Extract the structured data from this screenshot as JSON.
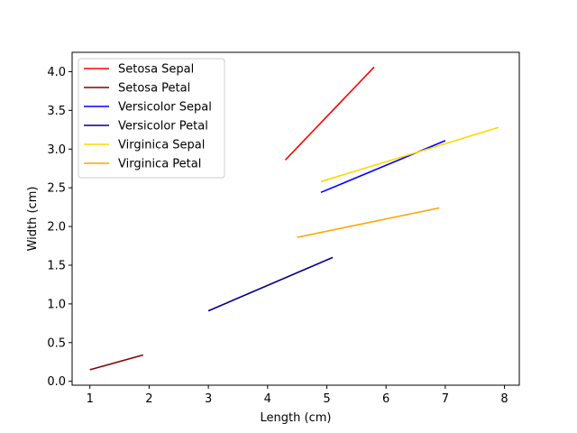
{
  "chart_data": {
    "type": "line",
    "title": "",
    "xlabel": "Length (cm)",
    "ylabel": "Width (cm)",
    "xlim": [
      0.7,
      8.25
    ],
    "ylim": [
      -0.05,
      4.25
    ],
    "xticks": [
      1,
      2,
      3,
      4,
      5,
      6,
      7,
      8
    ],
    "yticks": [
      0.0,
      0.5,
      1.0,
      1.5,
      2.0,
      2.5,
      3.0,
      3.5,
      4.0
    ],
    "grid": false,
    "legend_position": "top-left",
    "series": [
      {
        "name": "Setosa Sepal",
        "color": "#ff0000",
        "x": [
          4.3,
          5.8
        ],
        "y": [
          2.86,
          4.06
        ]
      },
      {
        "name": "Setosa Petal",
        "color": "#8b0000",
        "x": [
          1.0,
          1.9
        ],
        "y": [
          0.15,
          0.34
        ]
      },
      {
        "name": "Versicolor Sepal",
        "color": "#0000ff",
        "x": [
          4.9,
          7.0
        ],
        "y": [
          2.44,
          3.11
        ]
      },
      {
        "name": "Versicolor Petal",
        "color": "#00008b",
        "x": [
          3.0,
          5.1
        ],
        "y": [
          0.91,
          1.6
        ]
      },
      {
        "name": "Virginica Sepal",
        "color": "#ffd700",
        "x": [
          4.9,
          7.9
        ],
        "y": [
          2.58,
          3.28
        ]
      },
      {
        "name": "Virginica Petal",
        "color": "#ffa500",
        "x": [
          4.5,
          6.9
        ],
        "y": [
          1.86,
          2.24
        ]
      }
    ]
  }
}
